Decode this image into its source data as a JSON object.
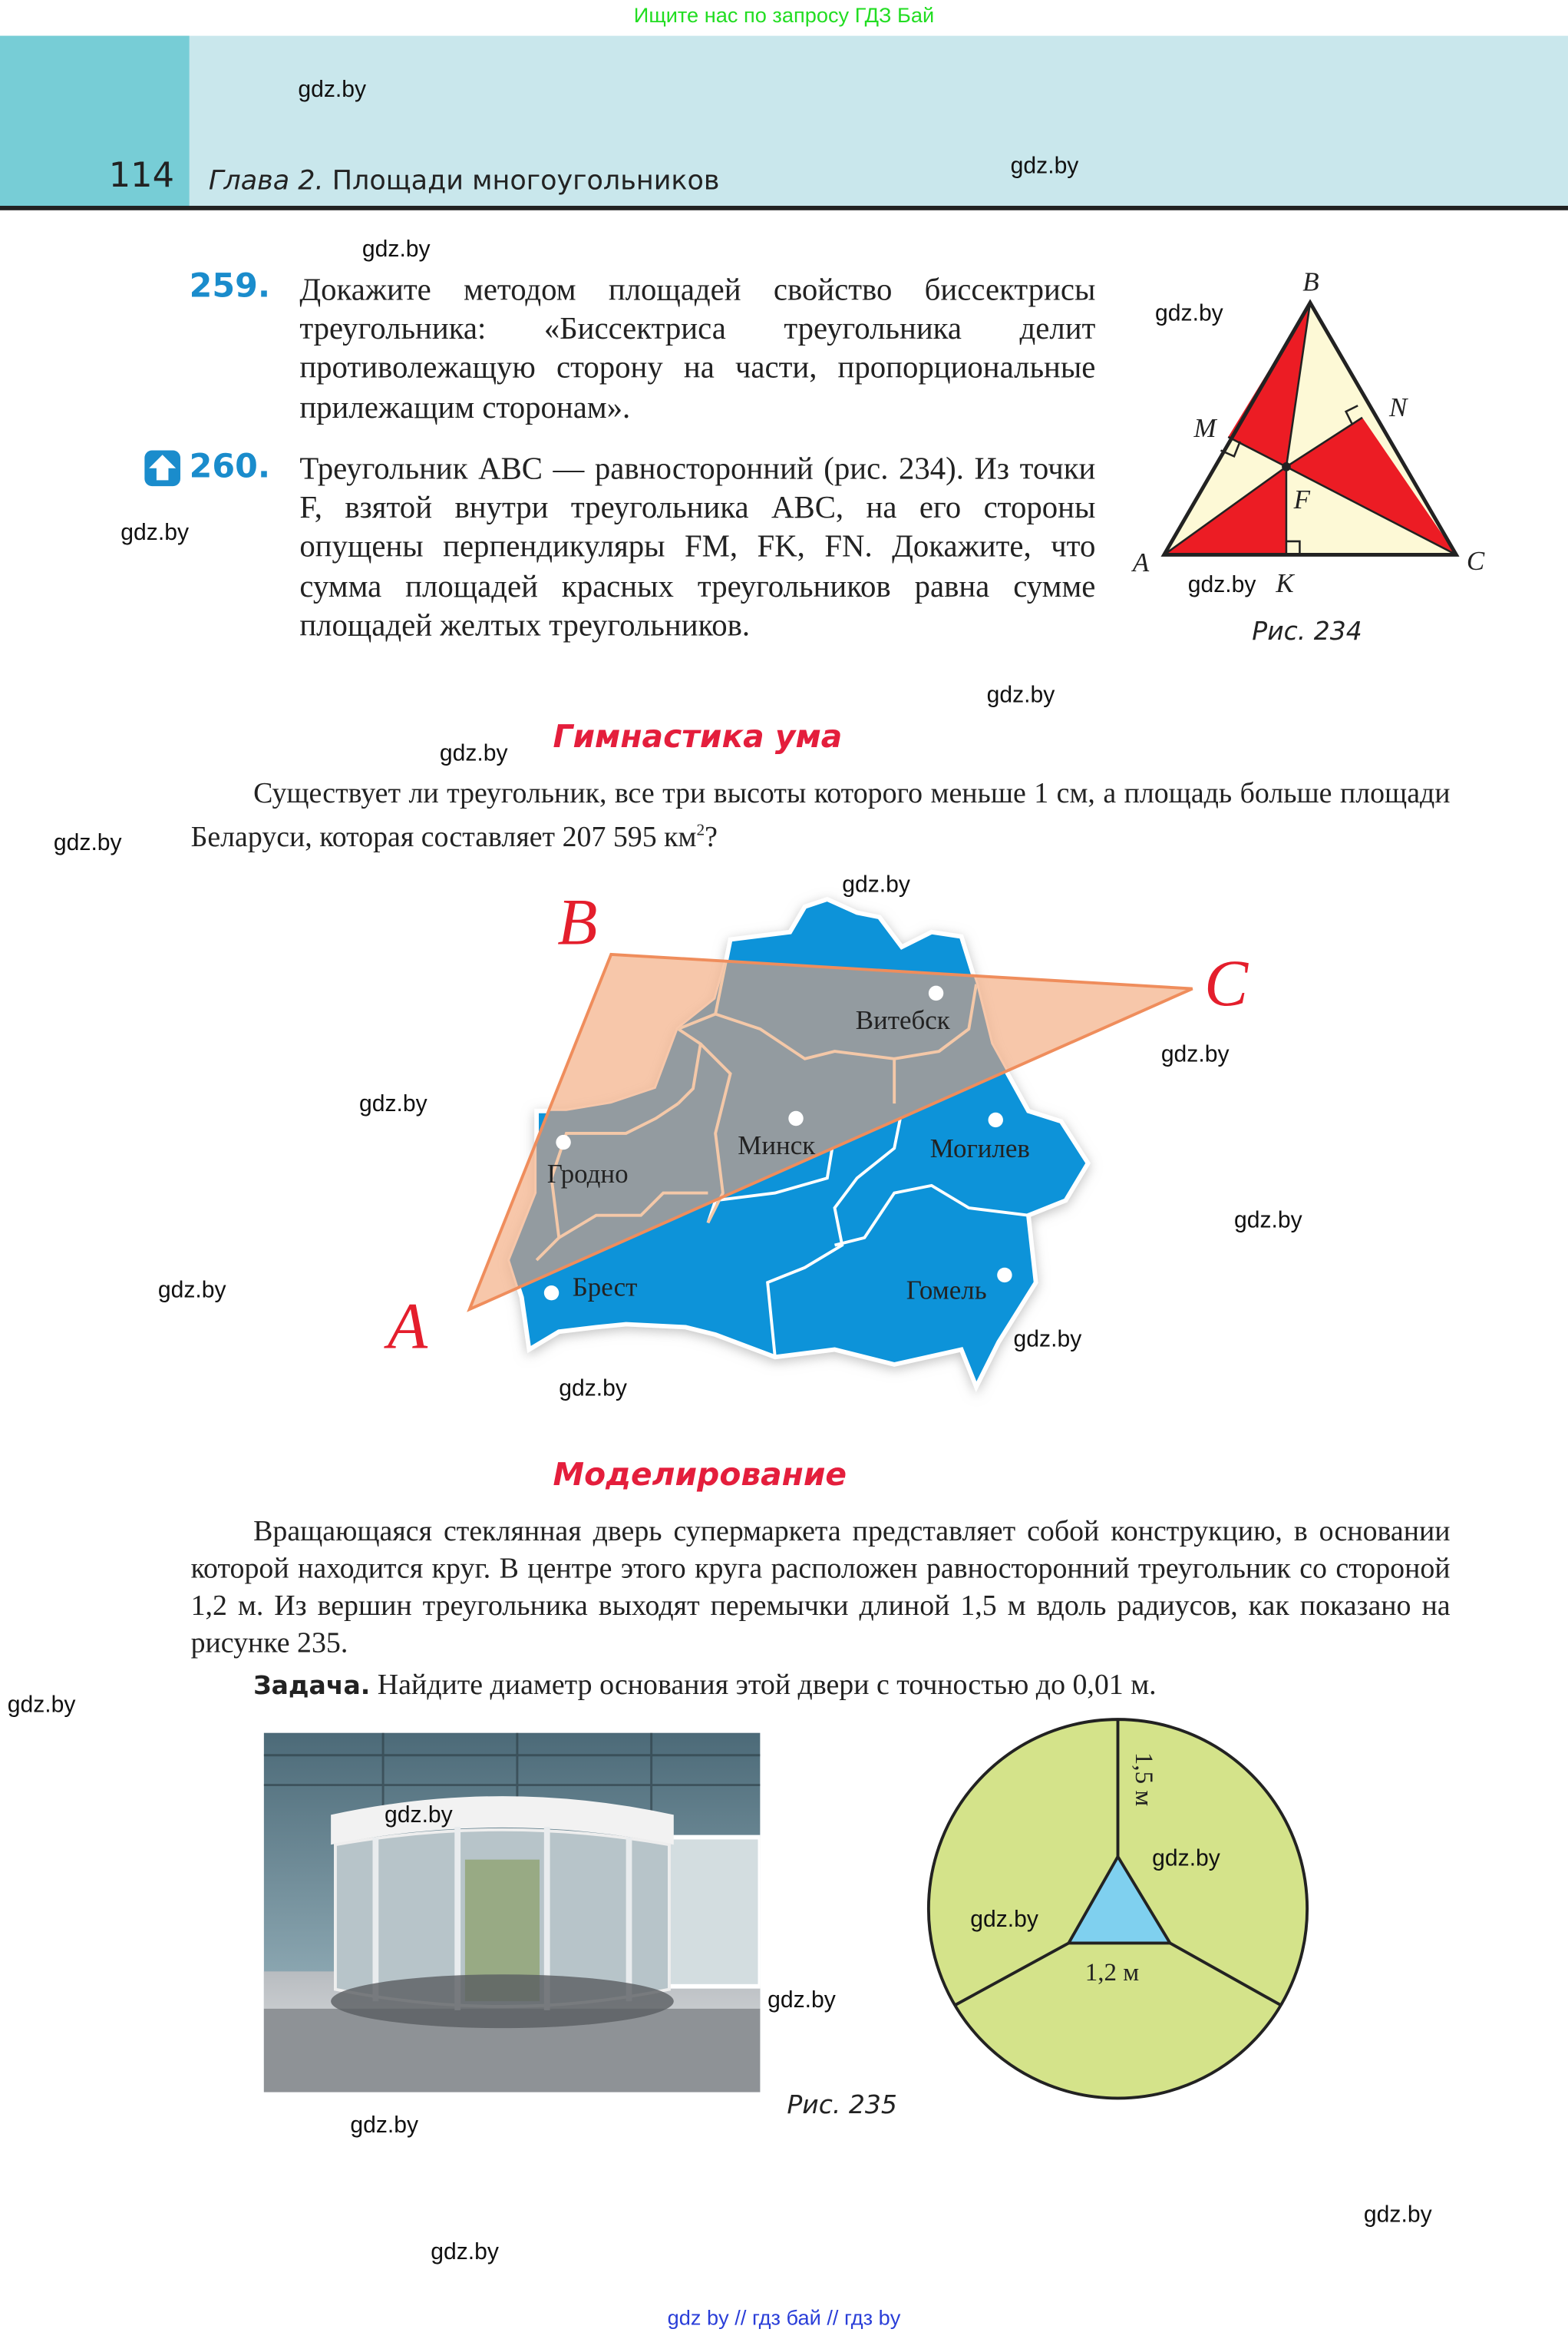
{
  "top_banner": "Ищите нас по запросу ГДЗ Бай",
  "header": {
    "page_number": "114",
    "chapter_prefix": "Глава 2.",
    "chapter_title": " Площади многоугольников"
  },
  "watermark": "gdz.by",
  "problems": [
    {
      "number": "259.",
      "text": "Докажите методом площадей свойство биссектрисы треугольника: «Биссектриса треугольника делит противолежащую сторону на части, пропорциональные прилежащим сторонам»."
    },
    {
      "number": "260.",
      "icon": "house-arrow-icon",
      "text": "Треугольник ABC — равносторонний (рис. 234). Из точки F, взятой внутри треугольника ABC, на его стороны опущены перпендикуляры FM, FK, FN. Докажите, что сумма площадей красных треугольников равна сумме площадей желтых треугольников."
    }
  ],
  "figure234": {
    "caption": "Рис. 234",
    "labels": {
      "A": "A",
      "B": "B",
      "C": "C",
      "M": "M",
      "N": "N",
      "F": "F",
      "K": "K"
    },
    "colors": {
      "red": "#ec1c24",
      "yellow": "#fdf9d6"
    }
  },
  "gymnastics": {
    "heading": "Гимнастика ума",
    "text": "Существует ли треугольник, все три высоты которого меньше 1 см, а площадь больше площади Беларуси, которая составляет 207 595 км",
    "sup": "2",
    "end": "?"
  },
  "map": {
    "vertices": {
      "A": "A",
      "B": "B",
      "C": "C"
    },
    "cities": [
      "Витебск",
      "Минск",
      "Гродно",
      "Могилев",
      "Брест",
      "Гомель"
    ],
    "colors": {
      "region": "#0b93d9",
      "covered": "#939ba0",
      "triangle": "#f4b48e",
      "letters": "#e41e2c"
    }
  },
  "modeling": {
    "heading": "Моделирование",
    "text": "Вращающаяся стеклянная дверь супермаркета представляет собой конструкцию, в основании которой находится круг. В центре этого круга расположен равносторонний треугольник со стороной 1,2 м. Из вершин треугольника выходят перемычки длиной 1,5 м вдоль радиусов, как показано на рисунке 235.",
    "task_label": "Задача.",
    "task_text": " Найдите диаметр основания этой двери с точностью до 0,01 м."
  },
  "figure235": {
    "caption": "Рис. 235",
    "radius_label": "1,5 м",
    "side_label": "1,2 м",
    "colors": {
      "circle": "#d4e38a",
      "triangle": "#7fd0ef"
    }
  },
  "footer": "gdz by  //  гдз бай  //  гдз by"
}
